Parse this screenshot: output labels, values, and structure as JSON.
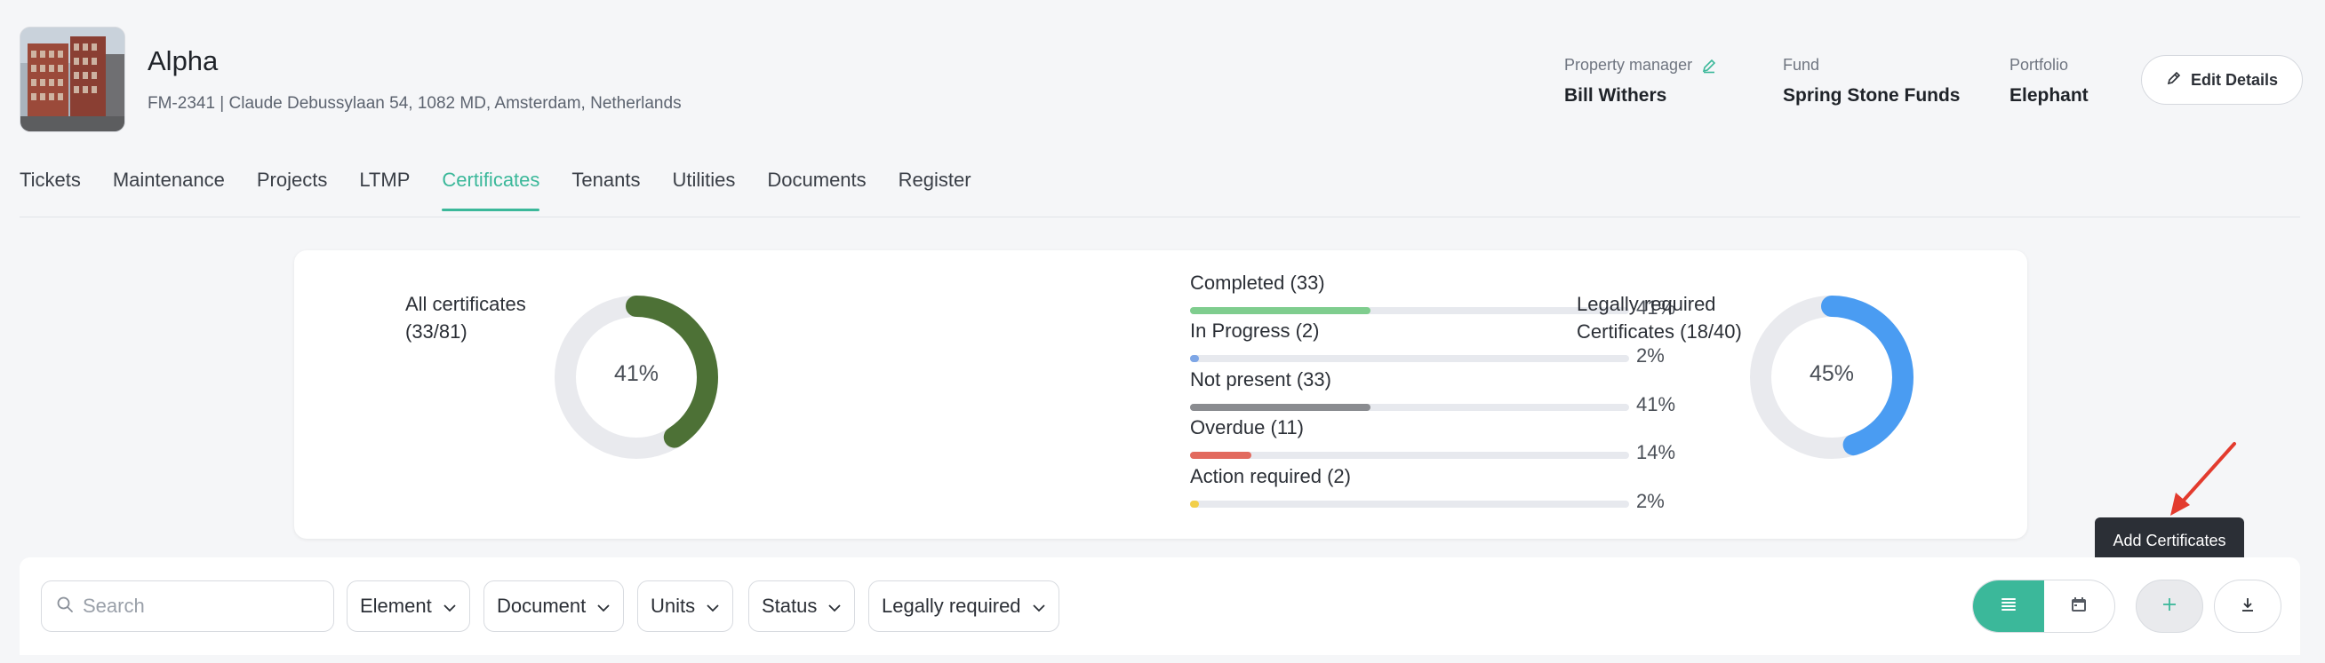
{
  "property": {
    "name": "Alpha",
    "address": "FM-2341 | Claude Debussylaan 54, 1082 MD, Amsterdam, Netherlands"
  },
  "meta": {
    "manager_label": "Property manager",
    "manager_value": "Bill Withers",
    "fund_label": "Fund",
    "fund_value": "Spring Stone Funds",
    "portfolio_label": "Portfolio",
    "portfolio_value": "Elephant"
  },
  "edit_button": "Edit Details",
  "tabs": [
    "Tickets",
    "Maintenance",
    "Projects",
    "LTMP",
    "Certificates",
    "Tenants",
    "Utilities",
    "Documents",
    "Register"
  ],
  "active_tab": "Certificates",
  "stats": {
    "all": {
      "label_line1": "All certificates",
      "label_line2": "(33/81)",
      "percent_text": "41%",
      "fraction": 0.41,
      "color": "#4d7136"
    },
    "legal": {
      "label_line1": "Legally required",
      "label_line2": "Certificates (18/40)",
      "percent_text": "45%",
      "fraction": 0.45,
      "color": "#4a9cf2"
    },
    "bars": [
      {
        "label": "Completed (33)",
        "percent_text": "41%",
        "fraction": 0.41,
        "color": "#7fcd8e"
      },
      {
        "label": "In Progress (2)",
        "percent_text": "2%",
        "fraction": 0.02,
        "color": "#7ea6e6"
      },
      {
        "label": "Not present (33)",
        "percent_text": "41%",
        "fraction": 0.41,
        "color": "#8a8c90"
      },
      {
        "label": "Overdue (11)",
        "percent_text": "14%",
        "fraction": 0.14,
        "color": "#e26a5e"
      },
      {
        "label": "Action required (2)",
        "percent_text": "2%",
        "fraction": 0.02,
        "color": "#f2cf4a"
      }
    ]
  },
  "filters": {
    "search_placeholder": "Search",
    "element": "Element",
    "document": "Document",
    "units": "Units",
    "status": "Status",
    "legally_required": "Legally required"
  },
  "tooltip": "Add Certificates",
  "colors": {
    "accent": "#3bb89a",
    "arrow": "#e33b2e"
  }
}
